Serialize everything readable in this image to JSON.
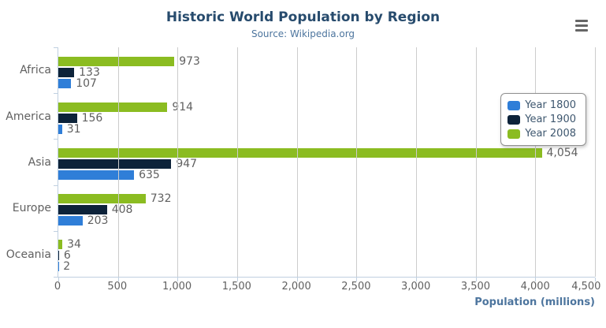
{
  "title": "Historic World Population by Region",
  "subtitle": "Source: Wikipedia.org",
  "menu_icon": "hamburger-menu-icon",
  "colors": {
    "title": "#274b6d",
    "subtitle": "#4d759e",
    "axis_title": "#4d759e",
    "labels": "#606060",
    "gridline": "#cccccc",
    "axis_line": "#c0d0e0",
    "legend_border": "#909090",
    "menu_icon": "#666666"
  },
  "chart_data": {
    "type": "bar",
    "title": "Historic World Population by Region",
    "subtitle": "Source: Wikipedia.org",
    "categories": [
      "Africa",
      "America",
      "Asia",
      "Europe",
      "Oceania"
    ],
    "series": [
      {
        "name": "Year 1800",
        "color": "#2f7ed8",
        "values": [
          107,
          31,
          635,
          203,
          2
        ]
      },
      {
        "name": "Year 1900",
        "color": "#0d233a",
        "values": [
          133,
          156,
          947,
          408,
          6
        ]
      },
      {
        "name": "Year 2008",
        "color": "#8bbc21",
        "values": [
          973,
          914,
          4054,
          732,
          34
        ]
      }
    ],
    "bar_order_top_to_bottom": [
      "Year 2008",
      "Year 1900",
      "Year 1800"
    ],
    "data_labels_shown": true,
    "xlabel": "Population (millions)",
    "xlim": [
      0,
      4500
    ],
    "x_ticks": [
      "0",
      "500",
      "1,000",
      "1,500",
      "2,000",
      "2,500",
      "3,000",
      "3,500",
      "4,000",
      "4,500"
    ],
    "grid": "vertical",
    "legend": {
      "position": "right",
      "items": [
        "Year 1800",
        "Year 1900",
        "Year 2008"
      ]
    }
  }
}
